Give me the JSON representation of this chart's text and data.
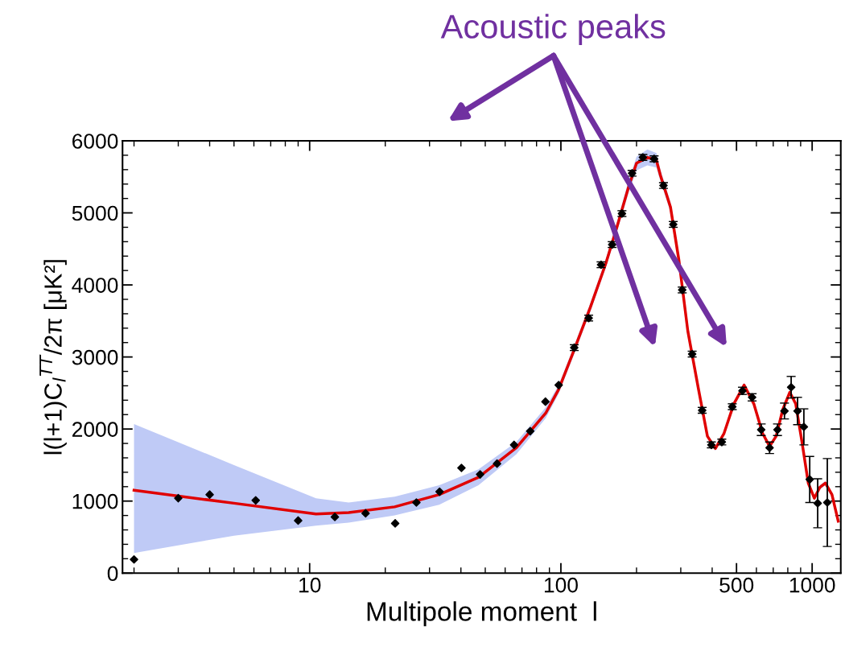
{
  "chart_data": {
    "type": "scatter",
    "xlabel": "Multipole moment  l",
    "ylabel": "l(l+1)C$_{l}$$^{TT}$/2π [μK²]",
    "log": "x",
    "xlim": [
      1.8,
      1300
    ],
    "xticks": [
      10,
      100,
      500,
      1000
    ],
    "ylim": [
      0,
      6000
    ],
    "yticks": [
      0,
      1000,
      2000,
      3000,
      4000,
      5000,
      6000
    ],
    "grid": false,
    "annotations": [
      "Acoustic peaks"
    ],
    "series": [
      {
        "type": "line",
        "color": "#e00000",
        "x": [
          2,
          5,
          10.6,
          14.3,
          21.8,
          32.8,
          47,
          66.5,
          87,
          98,
          113,
          131,
          151,
          168,
          186,
          200,
          221,
          240,
          249,
          273,
          295,
          320,
          353,
          383,
          412,
          446,
          488,
          536,
          586,
          635,
          677,
          719,
          764,
          815,
          860,
          911,
          965,
          1020,
          1073,
          1129,
          1199,
          1270
        ],
        "values": [
          1150,
          970,
          820,
          840,
          920,
          1090,
          1330,
          1740,
          2220,
          2550,
          3100,
          3690,
          4300,
          4830,
          5360,
          5690,
          5770,
          5730,
          5520,
          5080,
          4340,
          3360,
          2550,
          1900,
          1730,
          1940,
          2350,
          2610,
          2350,
          1940,
          1760,
          1900,
          2270,
          2510,
          2350,
          1820,
          1250,
          1040,
          1190,
          1250,
          1090,
          720
        ],
        "lower": [
          280,
          520,
          660,
          700,
          800,
          950,
          1220,
          1650,
          2150,
          2490,
          3040,
          3630,
          4240,
          4760,
          5280,
          5590,
          5660,
          5630,
          5440,
          5010,
          4300,
          3330,
          2520,
          1870,
          1700,
          1910,
          2320,
          2580,
          2320,
          1910,
          1730,
          1870,
          2240,
          2480,
          2320,
          1790,
          1220,
          1010,
          1160,
          1220,
          1060,
          690
        ],
        "upper": [
          2070,
          1500,
          1040,
          980,
          1060,
          1220,
          1440,
          1820,
          2300,
          2610,
          3160,
          3750,
          4360,
          4900,
          5450,
          5780,
          5880,
          5830,
          5600,
          5150,
          4380,
          3390,
          2580,
          1930,
          1760,
          1970,
          2380,
          2640,
          2380,
          1970,
          1790,
          1930,
          2300,
          2540,
          2380,
          1850,
          1280,
          1070,
          1220,
          1280,
          1120,
          750
        ]
      },
      {
        "color": "#000000",
        "marker": "diamond",
        "x": [
          2,
          3,
          4,
          6.1,
          9,
          12.6,
          16.7,
          21.9,
          26.6,
          32.9,
          40.2,
          47.7,
          55.7,
          65.1,
          75.5,
          86.8,
          98,
          113,
          129,
          144.5,
          160,
          175,
          192,
          212,
          235,
          256,
          280,
          304,
          333,
          365,
          397,
          437,
          481,
          528,
          577,
          627,
          677,
          728,
          776,
          825,
          875,
          927,
          978,
          1052,
          1149
        ],
        "values": [
          190,
          1040,
          1090,
          1010,
          730,
          780,
          830,
          690,
          980,
          1130,
          1460,
          1370,
          1520,
          1780,
          1970,
          2380,
          2610,
          3130,
          3540,
          4280,
          4560,
          4990,
          5550,
          5770,
          5750,
          5380,
          4840,
          3930,
          3040,
          2260,
          1780,
          1820,
          2310,
          2530,
          2440,
          1990,
          1740,
          1990,
          2250,
          2580,
          2250,
          2030,
          1300,
          970,
          980
        ],
        "errors": [
          null,
          null,
          null,
          null,
          null,
          null,
          null,
          null,
          null,
          null,
          null,
          null,
          null,
          null,
          null,
          null,
          null,
          40,
          40,
          40,
          40,
          40,
          40,
          40,
          40,
          40,
          40,
          40,
          40,
          40,
          40,
          40,
          40,
          50,
          50,
          80,
          80,
          80,
          110,
          150,
          190,
          250,
          320,
          340,
          610
        ]
      }
    ]
  }
}
